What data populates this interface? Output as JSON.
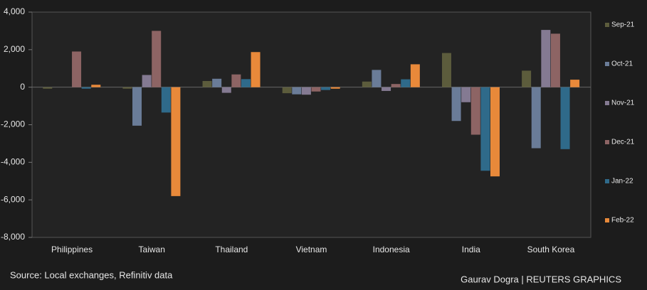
{
  "chart_data": {
    "type": "bar",
    "categories": [
      "Philippines",
      "Taiwan",
      "Thailand",
      "Vietnam",
      "Indonesia",
      "India",
      "South Korea"
    ],
    "series": [
      {
        "name": "Sep-21",
        "color": "#5c5c3c",
        "values": [
          -80,
          -80,
          330,
          -320,
          300,
          1820,
          880
        ]
      },
      {
        "name": "Oct-21",
        "color": "#6a7c98",
        "values": [
          0,
          -2050,
          450,
          -380,
          920,
          -1800,
          -3250
        ]
      },
      {
        "name": "Nov-21",
        "color": "#847a92",
        "values": [
          0,
          650,
          -300,
          -400,
          -200,
          -800,
          3050
        ]
      },
      {
        "name": "Dec-21",
        "color": "#8d6464",
        "values": [
          1900,
          3000,
          680,
          -230,
          170,
          -2530,
          2850
        ]
      },
      {
        "name": "Jan-22",
        "color": "#2f6a8a",
        "values": [
          -80,
          -1350,
          430,
          -150,
          420,
          -4450,
          -3300
        ]
      },
      {
        "name": "Feb-22",
        "color": "#e8893a",
        "values": [
          130,
          -5800,
          1870,
          -80,
          1220,
          -4750,
          400
        ]
      }
    ],
    "ylim": [
      -8000,
      4000
    ],
    "yticks": [
      {
        "value": -8000,
        "label": "-8,000"
      },
      {
        "value": -6000,
        "label": "-6,000"
      },
      {
        "value": -4000,
        "label": "-4,000"
      },
      {
        "value": -2000,
        "label": "-2,000"
      },
      0,
      {
        "value": 2000,
        "label": "2,000"
      },
      {
        "value": 4000,
        "label": "4,000"
      }
    ],
    "legend": "right",
    "source": "Source: Local exchanges, Refinitiv data",
    "credit": "Gaurav Dogra | REUTERS GRAPHICS"
  }
}
